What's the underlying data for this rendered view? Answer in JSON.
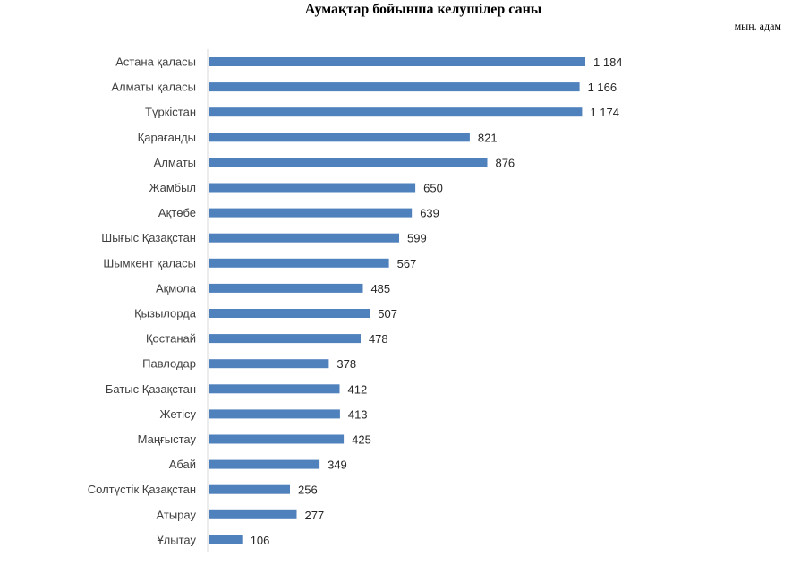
{
  "chart_data": {
    "type": "bar",
    "orientation": "horizontal",
    "title": "Аумақтар бойынша келушілер саны",
    "unit": "мың. адам",
    "xlabel": "",
    "ylabel": "",
    "xlim": [
      0,
      1250
    ],
    "grid": false,
    "legend": "none",
    "bar_color": "#4f81bd",
    "axis_color": "#d9d9d9",
    "categories": [
      "Астана қаласы",
      "Алматы қаласы",
      "Түркістан",
      "Қарағанды",
      "Алматы",
      "Жамбыл",
      "Ақтөбе",
      "Шығыс Қазақстан",
      "Шымкент қаласы",
      "Ақмола",
      "Қызылорда",
      "Қостанай",
      "Павлодар",
      "Батыс Қазақстан",
      "Жетісу",
      "Маңғыстау",
      "Абай",
      "Солтүстік Қазақстан",
      "Атырау",
      "Ұлытау"
    ],
    "values": [
      1184,
      1166,
      1174,
      821,
      876,
      650,
      639,
      599,
      567,
      485,
      507,
      478,
      378,
      412,
      413,
      425,
      349,
      256,
      277,
      106
    ],
    "value_labels": [
      "1 184",
      "1 166",
      "1 174",
      "821",
      "876",
      "650",
      "639",
      "599",
      "567",
      "485",
      "507",
      "478",
      "378",
      "412",
      "413",
      "425",
      "349",
      "256",
      "277",
      "106"
    ]
  }
}
